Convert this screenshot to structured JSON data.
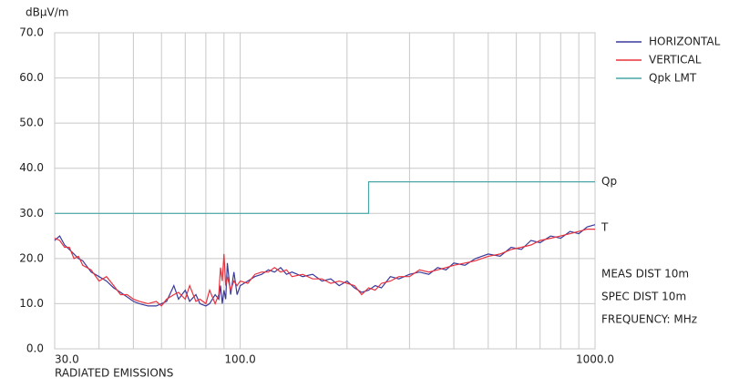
{
  "chart_data": {
    "type": "line",
    "y_label": "dBμV/m",
    "x_label": "RADIATED EMISSIONS",
    "xscale": "log",
    "grid": true,
    "xlim": [
      30,
      1000
    ],
    "ylim": [
      0,
      70
    ],
    "xticks": [
      {
        "value": 30,
        "label": "30.0"
      },
      {
        "value": 100,
        "label": "100.0"
      },
      {
        "value": 1000,
        "label": "1000.0"
      }
    ],
    "x_minor_ticks": [
      40,
      50,
      60,
      70,
      80,
      90,
      200,
      300,
      400,
      500,
      600,
      700,
      800,
      900
    ],
    "yticks": [
      {
        "value": 0,
        "label": "0.0"
      },
      {
        "value": 10,
        "label": "10.0"
      },
      {
        "value": 20,
        "label": "20.0"
      },
      {
        "value": 30,
        "label": "30.0"
      },
      {
        "value": 40,
        "label": "40.0"
      },
      {
        "value": 50,
        "label": "50.0"
      },
      {
        "value": 60,
        "label": "60.0"
      },
      {
        "value": 70,
        "label": "70.0"
      }
    ],
    "x": [
      30,
      31,
      32,
      33,
      34,
      35,
      36,
      38,
      40,
      42,
      44,
      46,
      48,
      50,
      52,
      55,
      58,
      60,
      62,
      65,
      67,
      70,
      72,
      75,
      77,
      80,
      82,
      85,
      87,
      88,
      89,
      90,
      91,
      92,
      94,
      96,
      98,
      100,
      105,
      110,
      115,
      120,
      125,
      130,
      135,
      140,
      150,
      160,
      170,
      180,
      190,
      200,
      210,
      220,
      230,
      240,
      250,
      265,
      280,
      300,
      320,
      340,
      360,
      380,
      400,
      430,
      460,
      500,
      540,
      580,
      620,
      660,
      700,
      750,
      800,
      850,
      900,
      950,
      1000
    ],
    "series": [
      {
        "name": "HORIZONTAL",
        "color": "#3a3a9c",
        "values": [
          24,
          25,
          23,
          22,
          21,
          20,
          19.5,
          17,
          16,
          15,
          13.5,
          12.5,
          11.5,
          10.5,
          10,
          9.5,
          9.5,
          10,
          10.5,
          14,
          11,
          13,
          10.5,
          12,
          10,
          9.5,
          10,
          12,
          11,
          14,
          10,
          13,
          11,
          19,
          12,
          17,
          12,
          14,
          15,
          16,
          16.5,
          17.5,
          17,
          18,
          16.5,
          17,
          16,
          16.5,
          15,
          15.5,
          14,
          15,
          13.5,
          12.5,
          13,
          14,
          13.5,
          16,
          15.5,
          16.5,
          17,
          16.5,
          18,
          17.5,
          19,
          18.5,
          20,
          21,
          20.5,
          22.5,
          22,
          24,
          23.5,
          25,
          24.5,
          26,
          25.5,
          27,
          27.5
        ]
      },
      {
        "name": "VERTICAL",
        "color": "#e8323c",
        "values": [
          24.5,
          24,
          22.5,
          22.5,
          20,
          20.5,
          18.5,
          17.5,
          15,
          16,
          14,
          12,
          12,
          11,
          10.5,
          10,
          10.5,
          9.5,
          11,
          12,
          12.5,
          11,
          14,
          10.5,
          11,
          10,
          13,
          10,
          12,
          18,
          15,
          21,
          14,
          16,
          13,
          15,
          14,
          15,
          14.5,
          16.5,
          17,
          17,
          18,
          17,
          17.5,
          16,
          16.5,
          15.5,
          15.5,
          14.5,
          15,
          14.5,
          14,
          12,
          13.5,
          13,
          14.5,
          15,
          16,
          16,
          17.5,
          17,
          17.5,
          18,
          18.5,
          19,
          19.5,
          20.5,
          21,
          22,
          22.5,
          23,
          24,
          24.5,
          25,
          25.5,
          26,
          26.5,
          26.5
        ]
      },
      {
        "name": "Qpk LMT",
        "color": "#4aa6a6",
        "x": [
          30,
          230,
          230,
          1000
        ],
        "values": [
          30,
          30,
          37,
          37
        ]
      }
    ],
    "annotations": [
      "Qp",
      "T",
      "MEAS DIST 10m",
      "SPEC DIST 10m",
      "FREQUENCY: MHz"
    ]
  }
}
